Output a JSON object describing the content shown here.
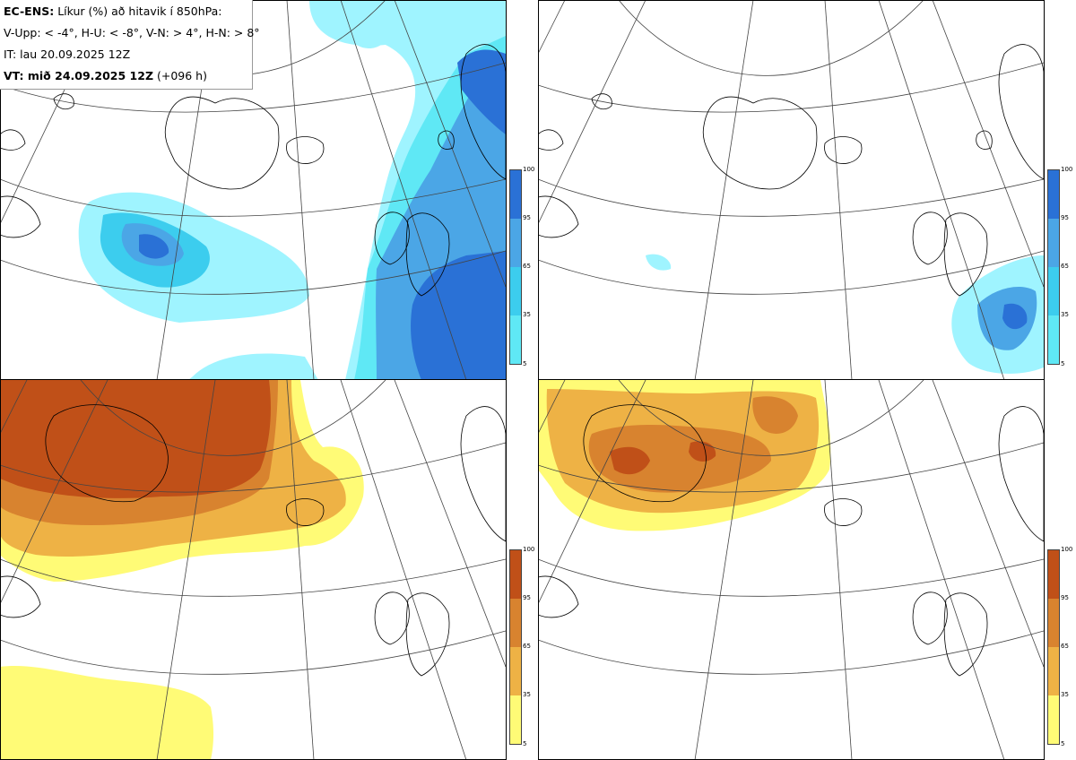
{
  "header": {
    "model": "EC-ENS:",
    "title": "Líkur (%) að hitavik í 850hPa:",
    "thresholds": "V-Upp: < -4°, H-U: < -8°, V-N: > 4°, H-N: > 8°",
    "initial_time": "IT: lau 20.09.2025 12Z",
    "valid_label": "VT: mið 24.09.2025 12Z",
    "lead_time": "(+096 h)"
  },
  "legend": {
    "ticks": [
      "100",
      "95",
      "65",
      "35",
      "5"
    ]
  },
  "colors": {
    "cold": [
      "#9ff4ff",
      "#5fe8f5",
      "#3ccdee",
      "#4ba6e6",
      "#2a71d6"
    ],
    "warm": [
      "#fffb76",
      "#f6de5a",
      "#eeb245",
      "#d8832f",
      "#c05018"
    ],
    "coast": "#000000",
    "grid": "#444444"
  },
  "panels": [
    {
      "id": "V-Upp",
      "type": "cold"
    },
    {
      "id": "H-U",
      "type": "cold"
    },
    {
      "id": "V-N",
      "type": "warm"
    },
    {
      "id": "H-N",
      "type": "warm"
    }
  ]
}
